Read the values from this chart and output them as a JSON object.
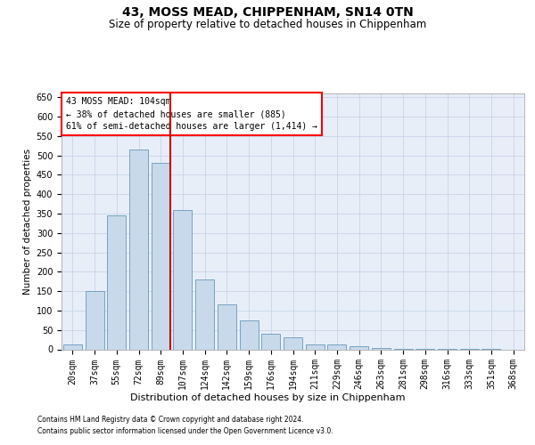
{
  "title": "43, MOSS MEAD, CHIPPENHAM, SN14 0TN",
  "subtitle": "Size of property relative to detached houses in Chippenham",
  "xlabel": "Distribution of detached houses by size in Chippenham",
  "ylabel": "Number of detached properties",
  "footer1": "Contains HM Land Registry data © Crown copyright and database right 2024.",
  "footer2": "Contains public sector information licensed under the Open Government Licence v3.0.",
  "annotation_line1": "43 MOSS MEAD: 104sqm",
  "annotation_line2": "← 38% of detached houses are smaller (885)",
  "annotation_line3": "61% of semi-detached houses are larger (1,414) →",
  "bar_color": "#c8d9eb",
  "bar_edge_color": "#6699bb",
  "vline_color": "#cc0000",
  "vline_pos": 4.45,
  "categories": [
    "20sqm",
    "37sqm",
    "55sqm",
    "72sqm",
    "89sqm",
    "107sqm",
    "124sqm",
    "142sqm",
    "159sqm",
    "176sqm",
    "194sqm",
    "211sqm",
    "229sqm",
    "246sqm",
    "263sqm",
    "281sqm",
    "298sqm",
    "316sqm",
    "333sqm",
    "351sqm",
    "368sqm"
  ],
  "values": [
    13,
    150,
    345,
    515,
    480,
    360,
    180,
    115,
    75,
    40,
    30,
    12,
    12,
    8,
    3,
    2,
    1,
    1,
    1,
    1,
    0
  ],
  "ylim": [
    0,
    660
  ],
  "yticks": [
    0,
    50,
    100,
    150,
    200,
    250,
    300,
    350,
    400,
    450,
    500,
    550,
    600,
    650
  ],
  "background_color": "#ffffff",
  "plot_bg_color": "#e8eef8",
  "grid_color": "#c8d4e8",
  "title_fontsize": 10,
  "subtitle_fontsize": 8.5,
  "xlabel_fontsize": 8,
  "ylabel_fontsize": 7.5,
  "tick_fontsize": 7,
  "footer_fontsize": 5.5,
  "ann_fontsize": 7
}
